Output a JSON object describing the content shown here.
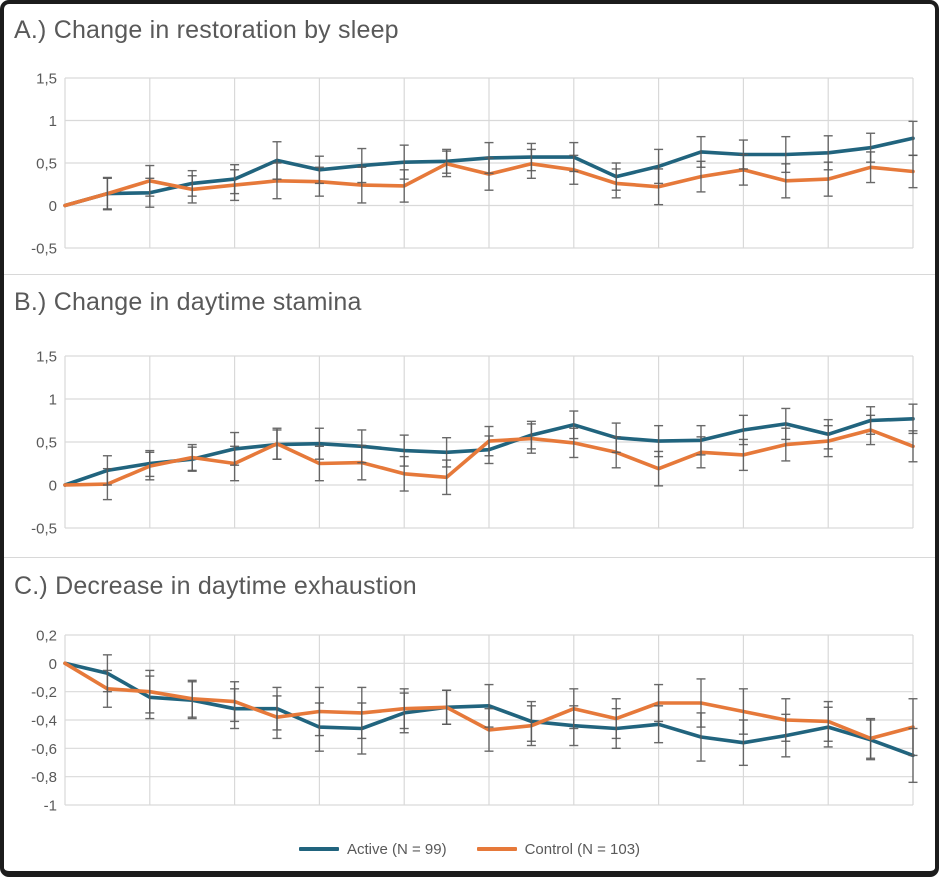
{
  "legend": {
    "items": [
      {
        "label": "Active (N = 99)",
        "series_key": "active",
        "color": "#21647E"
      },
      {
        "label": "Control (N = 103)",
        "series_key": "control",
        "color": "#E6793A"
      }
    ]
  },
  "colors": {
    "active_line": "#21647E",
    "control_line": "#E6793A",
    "gridline": "#D9D9D9",
    "error_bar": "#595959",
    "text": "#595959",
    "border": "#1C1C1C"
  },
  "chart_data": [
    {
      "type": "line",
      "title": "A.) Change in restoration by sleep",
      "xlabel": "",
      "ylabel": "",
      "ylim": [
        -0.5,
        1.5
      ],
      "y_tick_values": [
        1.5,
        1,
        0.5,
        0,
        -0.5
      ],
      "y_tick_labels": [
        "1,5",
        "1",
        "0,5",
        "0",
        "-0,5"
      ],
      "x_count": 21,
      "x_labels_visible": false,
      "grid": true,
      "error_bars": true,
      "series": [
        {
          "name": "Active (N = 99)",
          "color": "#21647E",
          "values": [
            0,
            0.14,
            0.15,
            0.26,
            0.31,
            0.53,
            0.42,
            0.47,
            0.51,
            0.52,
            0.56,
            0.57,
            0.57,
            0.34,
            0.46,
            0.63,
            0.6,
            0.6,
            0.62,
            0.68,
            0.79
          ],
          "errors": [
            0,
            0.19,
            0.17,
            0.15,
            0.17,
            0.22,
            0.16,
            0.2,
            0.2,
            0.14,
            0.18,
            0.16,
            0.17,
            0.16,
            0.2,
            0.18,
            0.17,
            0.21,
            0.2,
            0.17,
            0.2
          ]
        },
        {
          "name": "Control (N = 103)",
          "color": "#E6793A",
          "values": [
            0,
            0.14,
            0.29,
            0.19,
            0.24,
            0.29,
            0.28,
            0.24,
            0.23,
            0.49,
            0.37,
            0.49,
            0.42,
            0.26,
            0.22,
            0.34,
            0.42,
            0.29,
            0.31,
            0.45,
            0.4
          ],
          "errors": [
            0,
            0.18,
            0.18,
            0.16,
            0.18,
            0.21,
            0.17,
            0.21,
            0.19,
            0.15,
            0.19,
            0.17,
            0.17,
            0.17,
            0.21,
            0.18,
            0.18,
            0.2,
            0.2,
            0.18,
            0.19
          ]
        }
      ]
    },
    {
      "type": "line",
      "title": "B.) Change in daytime stamina",
      "xlabel": "",
      "ylabel": "",
      "ylim": [
        -0.5,
        1.5
      ],
      "y_tick_values": [
        1.5,
        1,
        0.5,
        0,
        -0.5
      ],
      "y_tick_labels": [
        "1,5",
        "1",
        "0,5",
        "0",
        "-0,5"
      ],
      "x_count": 21,
      "x_labels_visible": false,
      "grid": true,
      "error_bars": true,
      "series": [
        {
          "name": "Active (N = 99)",
          "color": "#21647E",
          "values": [
            0,
            0.17,
            0.25,
            0.3,
            0.42,
            0.47,
            0.48,
            0.45,
            0.4,
            0.38,
            0.41,
            0.58,
            0.7,
            0.55,
            0.51,
            0.52,
            0.64,
            0.71,
            0.59,
            0.75,
            0.77
          ],
          "errors": [
            0,
            0.17,
            0.15,
            0.14,
            0.19,
            0.17,
            0.18,
            0.19,
            0.18,
            0.17,
            0.16,
            0.16,
            0.16,
            0.17,
            0.18,
            0.17,
            0.17,
            0.18,
            0.17,
            0.16,
            0.17
          ]
        },
        {
          "name": "Control (N = 103)",
          "color": "#E6793A",
          "values": [
            0,
            0.01,
            0.22,
            0.32,
            0.25,
            0.48,
            0.25,
            0.26,
            0.13,
            0.09,
            0.51,
            0.54,
            0.49,
            0.38,
            0.19,
            0.38,
            0.35,
            0.47,
            0.51,
            0.64,
            0.45
          ],
          "errors": [
            0,
            0.18,
            0.16,
            0.15,
            0.2,
            0.18,
            0.2,
            0.2,
            0.2,
            0.2,
            0.17,
            0.17,
            0.17,
            0.18,
            0.2,
            0.18,
            0.18,
            0.19,
            0.18,
            0.17,
            0.18
          ]
        }
      ]
    },
    {
      "type": "line",
      "title": "C.) Decrease in daytime exhaustion",
      "xlabel": "",
      "ylabel": "",
      "ylim": [
        -1.0,
        0.2
      ],
      "y_tick_values": [
        0.2,
        0,
        -0.2,
        -0.4,
        -0.6,
        -0.8,
        -1
      ],
      "y_tick_labels": [
        "0,2",
        "0",
        "-0,2",
        "-0,4",
        "-0,6",
        "-0,8",
        "-1"
      ],
      "x_count": 21,
      "x_labels_visible": false,
      "grid": true,
      "error_bars": true,
      "series": [
        {
          "name": "Active (N = 99)",
          "color": "#21647E",
          "values": [
            0,
            -0.07,
            -0.24,
            -0.26,
            -0.32,
            -0.32,
            -0.45,
            -0.46,
            -0.35,
            -0.31,
            -0.3,
            -0.41,
            -0.44,
            -0.46,
            -0.43,
            -0.52,
            -0.56,
            -0.51,
            -0.45,
            -0.54,
            -0.65
          ],
          "errors": [
            0,
            0.13,
            0.15,
            0.13,
            0.14,
            0.15,
            0.17,
            0.18,
            0.14,
            0.12,
            0.15,
            0.14,
            0.14,
            0.14,
            0.13,
            0.17,
            0.16,
            0.15,
            0.14,
            0.14,
            0.19
          ]
        },
        {
          "name": "Control (N = 103)",
          "color": "#E6793A",
          "values": [
            0,
            -0.18,
            -0.2,
            -0.25,
            -0.27,
            -0.38,
            -0.34,
            -0.35,
            -0.32,
            -0.31,
            -0.47,
            -0.44,
            -0.32,
            -0.39,
            -0.28,
            -0.28,
            -0.34,
            -0.4,
            -0.41,
            -0.53,
            -0.45
          ],
          "errors": [
            0,
            0.13,
            0.15,
            0.13,
            0.14,
            0.15,
            0.17,
            0.18,
            0.14,
            0.12,
            0.15,
            0.14,
            0.14,
            0.14,
            0.13,
            0.17,
            0.16,
            0.15,
            0.14,
            0.14,
            0.2
          ]
        }
      ]
    }
  ]
}
